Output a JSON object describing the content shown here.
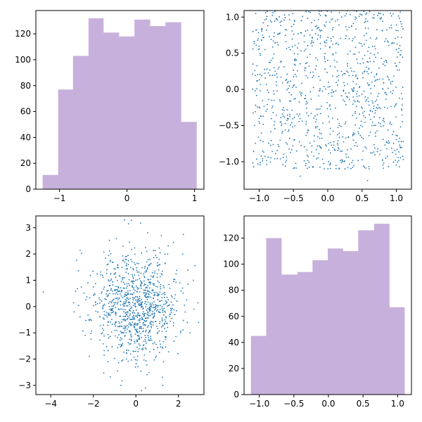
{
  "colors": {
    "hist_fill": "#c8b0dc",
    "scatter_point": "#1f77b4",
    "axes": "#000000"
  },
  "chart_data": [
    {
      "type": "bar",
      "subtype": "histogram",
      "title": "",
      "xlabel": "",
      "ylabel": "",
      "xlim": [
        -1.35,
        1.14
      ],
      "ylim": [
        0,
        138
      ],
      "bin_edges": [
        -1.25,
        -1.02,
        -0.8,
        -0.57,
        -0.35,
        -0.12,
        0.11,
        0.34,
        0.57,
        0.8,
        1.03
      ],
      "values": [
        11,
        77,
        103,
        132,
        121,
        118,
        131,
        126,
        129,
        52
      ],
      "xticks": [
        -1,
        0,
        1
      ],
      "xtick_labels": [
        "−1",
        "0",
        "1"
      ],
      "yticks": [
        0,
        20,
        40,
        60,
        80,
        100,
        120
      ],
      "ytick_labels": [
        "0",
        "20",
        "40",
        "60",
        "80",
        "100",
        "120"
      ],
      "grid": false
    },
    {
      "type": "scatter",
      "title": "",
      "xlabel": "",
      "ylabel": "",
      "xlim": [
        -1.22,
        1.22
      ],
      "ylim": [
        -1.38,
        1.09
      ],
      "distribution": "approximately uniform over [-1.1, 1.1] x [-1.1, 1.1], about 1000 points",
      "n_points": 1000,
      "sample_points": [
        [
          -1.05,
          1.05
        ],
        [
          -0.95,
          0.75
        ],
        [
          -0.8,
          1.06
        ],
        [
          -0.63,
          1.03
        ],
        [
          -1.0,
          0.56
        ],
        [
          -0.98,
          0.07
        ],
        [
          -1.0,
          -0.4
        ],
        [
          -1.08,
          -0.86
        ],
        [
          -0.95,
          -0.96
        ],
        [
          -0.4,
          -1.2
        ],
        [
          -0.05,
          -1.1
        ],
        [
          0.25,
          -1.1
        ],
        [
          0.58,
          -1.26
        ],
        [
          1.1,
          -0.97
        ],
        [
          1.1,
          -0.72
        ],
        [
          1.08,
          0.87
        ],
        [
          0.8,
          0.94
        ],
        [
          0.4,
          1.0
        ],
        [
          0.0,
          0.4
        ],
        [
          0.2,
          0.25
        ],
        [
          0.75,
          -0.25
        ],
        [
          -0.5,
          0.05
        ],
        [
          0.5,
          0.6
        ],
        [
          0.85,
          0.7
        ],
        [
          -0.3,
          -0.6
        ]
      ],
      "xticks": [
        -1.0,
        -0.5,
        0.0,
        0.5,
        1.0
      ],
      "xtick_labels": [
        "−1.0",
        "−0.5",
        "0.0",
        "0.5",
        "1.0"
      ],
      "yticks": [
        -1.0,
        -0.5,
        0.0,
        0.5,
        1.0
      ],
      "ytick_labels": [
        "−1.0",
        "−0.5",
        "0.0",
        "0.5",
        "1.0"
      ],
      "grid": false
    },
    {
      "type": "scatter",
      "title": "",
      "xlabel": "",
      "ylabel": "",
      "xlim": [
        -4.7,
        3.2
      ],
      "ylim": [
        -3.35,
        3.45
      ],
      "distribution": "approximately bivariate normal, mean (0, 0), std 1 in both x and y, about 1000 points",
      "n_points": 1000,
      "sample_points": [
        [
          -4.35,
          0.55
        ],
        [
          -2.9,
          -0.2
        ],
        [
          -0.35,
          3.15
        ],
        [
          1.2,
          2.7
        ],
        [
          2.2,
          2.0
        ],
        [
          2.95,
          -0.6
        ],
        [
          2.7,
          1.0
        ],
        [
          -0.7,
          -3.0
        ],
        [
          0.45,
          -3.1
        ],
        [
          -2.0,
          0.75
        ],
        [
          -1.3,
          -2.1
        ],
        [
          1.3,
          -2.1
        ],
        [
          -2.2,
          -0.5
        ],
        [
          2.1,
          -1.0
        ],
        [
          0.0,
          0.0
        ]
      ],
      "xticks": [
        -4,
        -2,
        0,
        2
      ],
      "xtick_labels": [
        "−4",
        "−2",
        "0",
        "2"
      ],
      "yticks": [
        -3,
        -2,
        -1,
        0,
        1,
        2,
        3
      ],
      "ytick_labels": [
        "−3",
        "−2",
        "−1",
        "0",
        "1",
        "2",
        "3"
      ],
      "grid": false
    },
    {
      "type": "bar",
      "subtype": "histogram",
      "title": "",
      "xlabel": "",
      "ylabel": "",
      "xlim": [
        -1.22,
        1.2
      ],
      "ylim": [
        0,
        137
      ],
      "bin_edges": [
        -1.12,
        -0.9,
        -0.68,
        -0.45,
        -0.23,
        -0.01,
        0.21,
        0.43,
        0.66,
        0.88,
        1.1
      ],
      "values": [
        45,
        120,
        92,
        94,
        103,
        112,
        110,
        126,
        131,
        67
      ],
      "xticks": [
        -1.0,
        -0.5,
        0.0,
        0.5,
        1.0
      ],
      "xtick_labels": [
        "−1.0",
        "−0.5",
        "0.0",
        "0.5",
        "1.0"
      ],
      "yticks": [
        0,
        20,
        40,
        60,
        80,
        100,
        120
      ],
      "ytick_labels": [
        "0",
        "20",
        "40",
        "60",
        "80",
        "100",
        "120"
      ],
      "grid": false
    }
  ]
}
